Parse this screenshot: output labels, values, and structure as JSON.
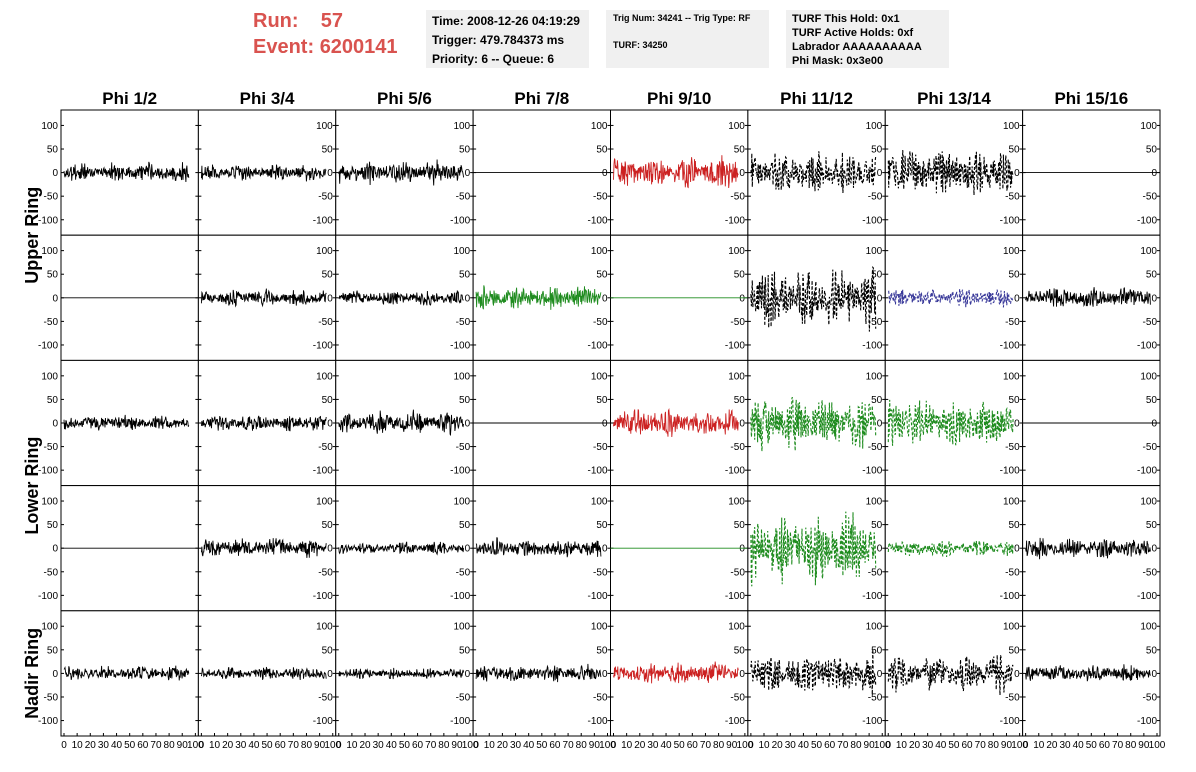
{
  "header": {
    "run_label": "Run:",
    "run_value": "57",
    "event_label": "Event:",
    "event_value": "6200141",
    "time_box": {
      "line1": "Time: 2008-12-26 04:19:29",
      "line2": "Trigger: 479.784373 ms",
      "line3": "Priority: 6 -- Queue: 6"
    },
    "trig_box": {
      "line1": "Trig Num: 34241 -- Trig Type: RF",
      "line2": "TURF: 34250"
    },
    "turf_box": {
      "line1": "TURF This Hold: 0x1",
      "line2": "TURF Active Holds: 0xf",
      "line3": "Labrador AAAAAAAAAA",
      "line4": "Phi Mask: 0x3e00"
    }
  },
  "chart_data": {
    "type": "line",
    "columns": [
      "Phi 1/2",
      "Phi 3/4",
      "Phi 5/6",
      "Phi 7/8",
      "Phi 9/10",
      "Phi 11/12",
      "Phi 13/14",
      "Phi 15/16"
    ],
    "ring_labels": [
      "Upper Ring",
      "Lower Ring",
      "Nadir Ring"
    ],
    "xlim": [
      0,
      100
    ],
    "ylim": [
      -120,
      120
    ],
    "x_ticks": [
      "0",
      "10",
      "20",
      "30",
      "40",
      "50",
      "60",
      "70",
      "80",
      "90",
      "100"
    ],
    "y_ticks": [
      "100",
      "50",
      "0",
      "-50",
      "-100"
    ],
    "trace_x_range": [
      0,
      95
    ],
    "colors": {
      "black": "#000000",
      "red": "#cc2222",
      "green": "#1f8c1f",
      "blue": "#3a3a9a"
    },
    "panels": [
      [
        {
          "color": "black",
          "style": "solid",
          "amplitude": 18
        },
        {
          "color": "black",
          "style": "solid",
          "amplitude": 15
        },
        {
          "color": "black",
          "style": "solid",
          "amplitude": 22
        },
        {
          "color": "black",
          "style": "solid",
          "amplitude": 0
        },
        {
          "color": "red",
          "style": "solid",
          "amplitude": 30
        },
        {
          "color": "black",
          "style": "dashed",
          "amplitude": 40
        },
        {
          "color": "black",
          "style": "dashed",
          "amplitude": 48
        },
        {
          "color": "black",
          "style": "solid",
          "amplitude": 0
        }
      ],
      [
        {
          "color": "black",
          "style": "solid",
          "amplitude": 0
        },
        {
          "color": "black",
          "style": "solid",
          "amplitude": 16
        },
        {
          "color": "black",
          "style": "solid",
          "amplitude": 14
        },
        {
          "color": "green",
          "style": "solid",
          "amplitude": 22
        },
        {
          "color": "green",
          "style": "solid",
          "amplitude": 0
        },
        {
          "color": "black",
          "style": "dashed",
          "amplitude": 60
        },
        {
          "color": "blue",
          "style": "dashed",
          "amplitude": 18
        },
        {
          "color": "black",
          "style": "solid",
          "amplitude": 20
        }
      ],
      [
        {
          "color": "black",
          "style": "solid",
          "amplitude": 14
        },
        {
          "color": "black",
          "style": "solid",
          "amplitude": 16
        },
        {
          "color": "black",
          "style": "solid",
          "amplitude": 22
        },
        {
          "color": "black",
          "style": "solid",
          "amplitude": 0
        },
        {
          "color": "red",
          "style": "solid",
          "amplitude": 28
        },
        {
          "color": "green",
          "style": "dashed",
          "amplitude": 48
        },
        {
          "color": "green",
          "style": "dashed",
          "amplitude": 45
        },
        {
          "color": "black",
          "style": "solid",
          "amplitude": 0
        }
      ],
      [
        {
          "color": "black",
          "style": "solid",
          "amplitude": 0
        },
        {
          "color": "black",
          "style": "solid",
          "amplitude": 18
        },
        {
          "color": "black",
          "style": "solid",
          "amplitude": 12
        },
        {
          "color": "black",
          "style": "solid",
          "amplitude": 18
        },
        {
          "color": "green",
          "style": "solid",
          "amplitude": 0
        },
        {
          "color": "green",
          "style": "dashed",
          "amplitude": 65
        },
        {
          "color": "green",
          "style": "dashed",
          "amplitude": 16
        },
        {
          "color": "black",
          "style": "solid",
          "amplitude": 20
        }
      ],
      [
        {
          "color": "black",
          "style": "solid",
          "amplitude": 14
        },
        {
          "color": "black",
          "style": "solid",
          "amplitude": 12
        },
        {
          "color": "black",
          "style": "solid",
          "amplitude": 10
        },
        {
          "color": "black",
          "style": "solid",
          "amplitude": 16
        },
        {
          "color": "red",
          "style": "solid",
          "amplitude": 20
        },
        {
          "color": "black",
          "style": "dashed",
          "amplitude": 40
        },
        {
          "color": "black",
          "style": "dashed",
          "amplitude": 36
        },
        {
          "color": "black",
          "style": "solid",
          "amplitude": 16
        }
      ]
    ]
  }
}
